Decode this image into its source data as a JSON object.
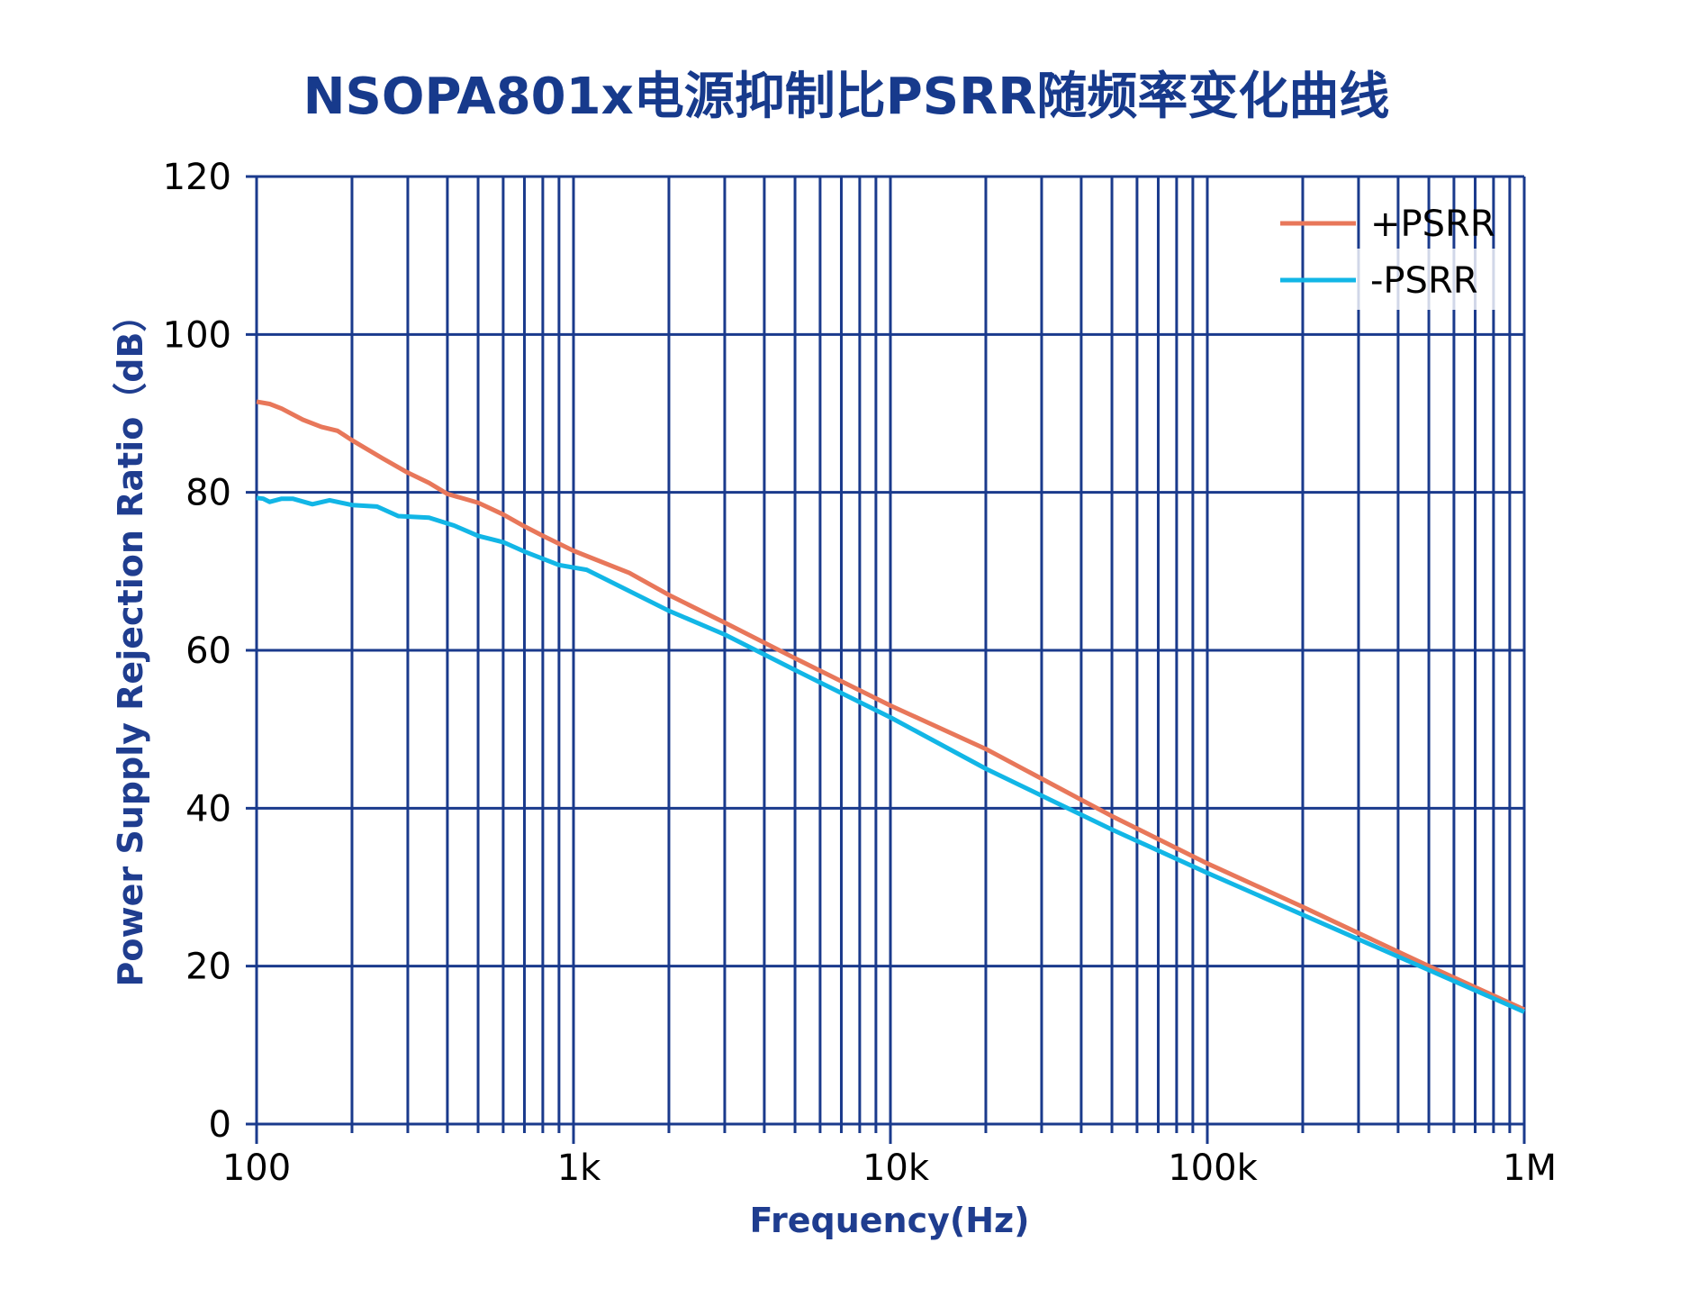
{
  "chart_data": {
    "type": "line",
    "title": "NSOPA801x电源抑制比PSRR随频率变化曲线",
    "xlabel": "Frequency(Hz)",
    "ylabel": "Power Supply Rejection Ratio（dB）",
    "xscale": "log",
    "xlim": [
      100,
      1000000
    ],
    "ylim": [
      0,
      120
    ],
    "xticks": [
      100,
      1000,
      10000,
      100000,
      1000000
    ],
    "xtick_labels": [
      "100",
      "1k",
      "10k",
      "100k",
      "1M"
    ],
    "yticks": [
      0,
      20,
      40,
      60,
      80,
      100,
      120
    ],
    "ytick_labels": [
      "0",
      "20",
      "40",
      "60",
      "80",
      "100",
      "120"
    ],
    "grid": true,
    "legend_position": "top-right",
    "colors": {
      "grid": "#1a3a8c",
      "title": "#173a8c"
    },
    "series": [
      {
        "name": "+PSRR",
        "color": "#e8775a",
        "x": [
          100,
          110,
          120,
          140,
          160,
          180,
          200,
          250,
          300,
          350,
          400,
          500,
          600,
          700,
          800,
          1000,
          1500,
          2000,
          3000,
          5000,
          10000,
          20000,
          50000,
          100000,
          200000,
          500000,
          1000000
        ],
        "y": [
          91.5,
          91.2,
          90.6,
          89.2,
          88.3,
          87.8,
          86.6,
          84.3,
          82.5,
          81.2,
          79.8,
          78.7,
          77.2,
          75.7,
          74.5,
          72.6,
          69.8,
          67.0,
          63.5,
          59.0,
          53.0,
          47.5,
          39.0,
          33.0,
          27.5,
          20.0,
          14.5
        ]
      },
      {
        "name": "-PSRR",
        "color": "#12b6e6",
        "x": [
          100,
          105,
          110,
          120,
          130,
          150,
          170,
          200,
          240,
          280,
          350,
          420,
          500,
          600,
          700,
          900,
          1100,
          2000,
          3000,
          5000,
          10000,
          20000,
          50000,
          100000,
          200000,
          500000,
          1000000
        ],
        "y": [
          79.3,
          79.2,
          78.8,
          79.2,
          79.2,
          78.5,
          79.0,
          78.4,
          78.2,
          77.0,
          76.8,
          75.8,
          74.5,
          73.7,
          72.5,
          70.8,
          70.2,
          65.0,
          62.0,
          57.5,
          51.5,
          45.0,
          37.3,
          31.8,
          26.5,
          19.5,
          14.2
        ]
      }
    ]
  }
}
